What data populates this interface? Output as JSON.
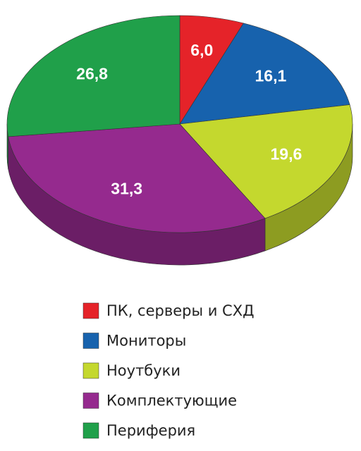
{
  "chart_data": {
    "type": "pie",
    "categories": [
      "ПК, серверы и СХД",
      "Мониторы",
      "Ноутбуки",
      "Комплектующие",
      "Периферия"
    ],
    "values": [
      6.0,
      16.1,
      19.6,
      31.3,
      26.8
    ],
    "value_labels": [
      "6,0",
      "16,1",
      "19,6",
      "31,3",
      "26,8"
    ],
    "colors": [
      "#e52329",
      "#1762ad",
      "#c4d82e",
      "#952a8e",
      "#20a04a"
    ],
    "legend": "bottom"
  }
}
